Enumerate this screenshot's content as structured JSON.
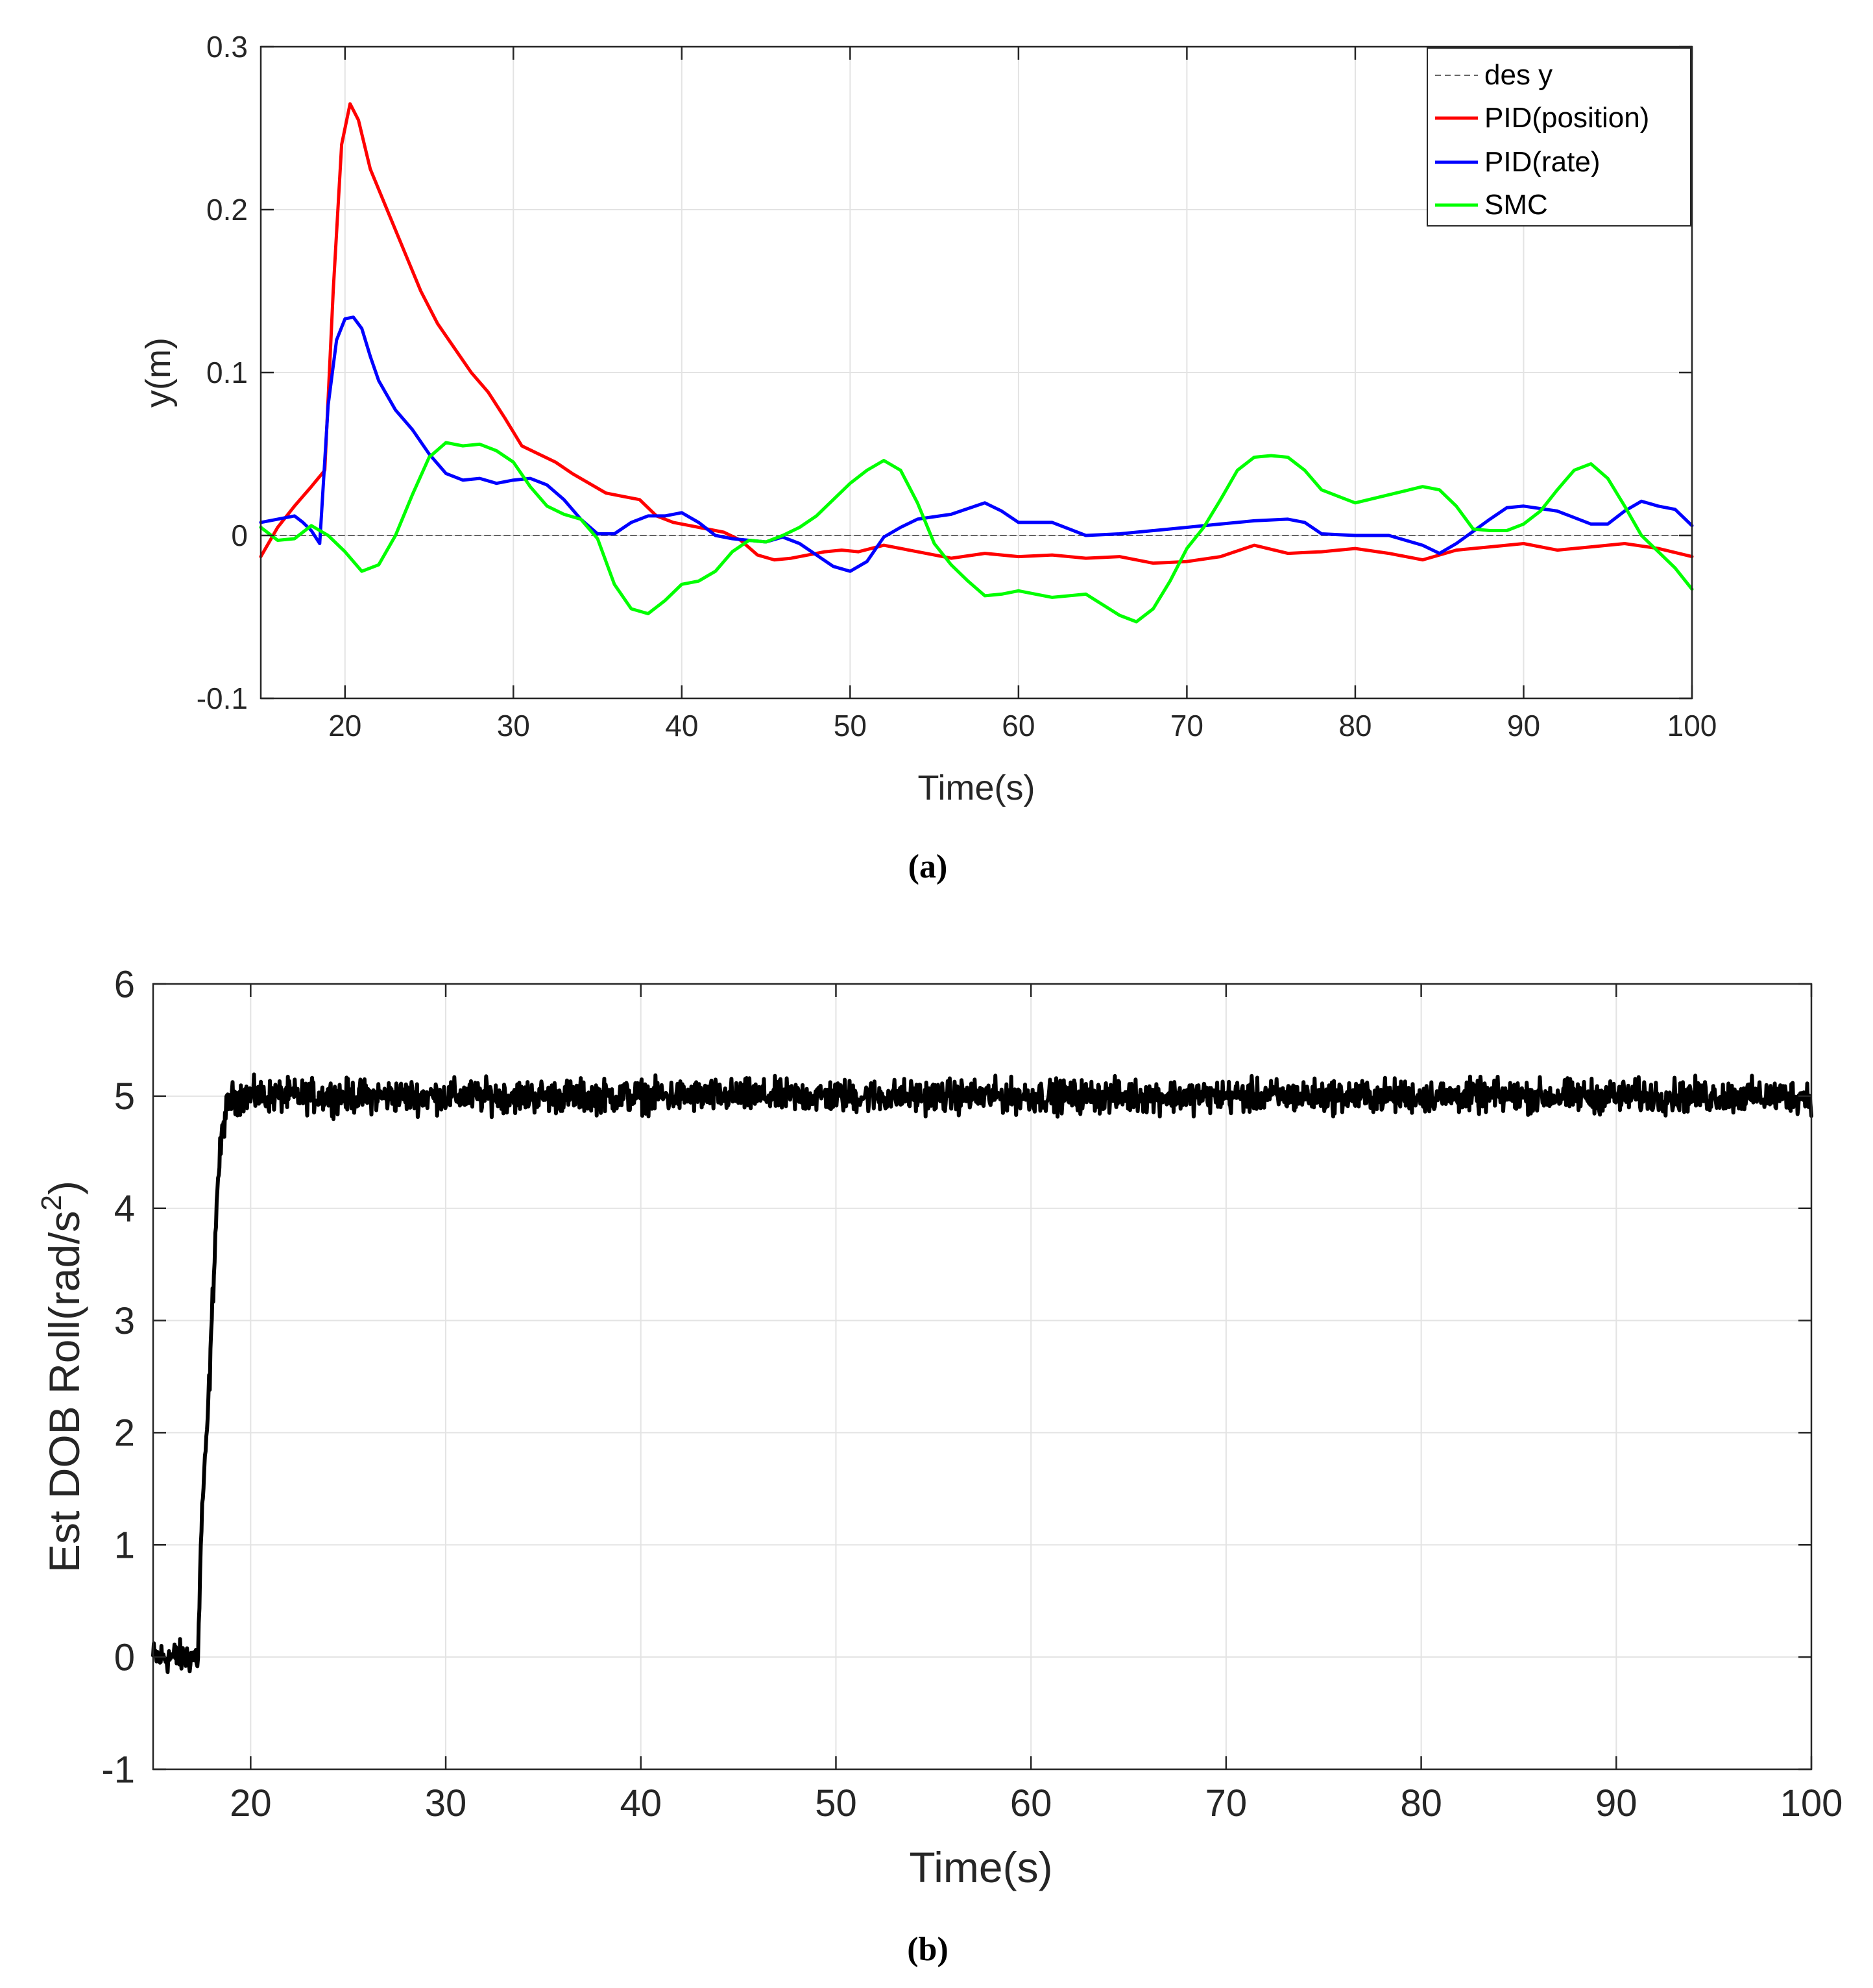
{
  "chart_data": [
    {
      "type": "line",
      "caption": "(a)",
      "xlabel": "Time(s)",
      "ylabel": "y(m)",
      "xlim": [
        15,
        100
      ],
      "ylim": [
        -0.1,
        0.3
      ],
      "xticks": [
        20,
        30,
        40,
        50,
        60,
        70,
        80,
        90,
        100
      ],
      "yticks": [
        -0.1,
        0,
        0.1,
        0.2,
        0.3
      ],
      "xtick_labels": [
        "20",
        "30",
        "40",
        "50",
        "60",
        "70",
        "80",
        "90",
        "100"
      ],
      "ytick_labels": [
        "-0.1",
        "0",
        "0.1",
        "0.2",
        "0.3"
      ],
      "grid": true,
      "legend_position": "top-right",
      "series": [
        {
          "name": "des y",
          "color": "#666666",
          "style": "dashed",
          "x": [
            15,
            100
          ],
          "y": [
            0,
            0
          ]
        },
        {
          "name": "PID(position)",
          "color": "#ff0000",
          "style": "solid",
          "x": [
            15,
            16,
            17,
            18,
            18.8,
            19.3,
            19.8,
            20.3,
            20.8,
            21.5,
            22.5,
            23.5,
            24.5,
            25.5,
            26.5,
            27.5,
            28.5,
            29.5,
            30.5,
            31.5,
            32.5,
            33.5,
            34.5,
            35.5,
            36.5,
            37.5,
            38.5,
            39.5,
            40.5,
            41.5,
            42.5,
            43.5,
            44.5,
            45.5,
            46.5,
            47.5,
            48.5,
            49.5,
            50.5,
            52,
            54,
            56,
            58,
            60,
            62,
            64,
            66,
            68,
            70,
            72,
            74,
            76,
            78,
            80,
            82,
            84,
            86,
            88,
            90,
            92,
            94,
            96,
            98,
            100
          ],
          "y": [
            -0.013,
            0.005,
            0.018,
            0.03,
            0.04,
            0.15,
            0.24,
            0.265,
            0.255,
            0.225,
            0.2,
            0.175,
            0.15,
            0.13,
            0.115,
            0.1,
            0.088,
            0.072,
            0.055,
            0.05,
            0.045,
            0.038,
            0.032,
            0.026,
            0.024,
            0.022,
            0.012,
            0.008,
            0.006,
            0.004,
            0.002,
            -0.003,
            -0.012,
            -0.015,
            -0.014,
            -0.012,
            -0.01,
            -0.009,
            -0.01,
            -0.006,
            -0.01,
            -0.014,
            -0.011,
            -0.013,
            -0.012,
            -0.014,
            -0.013,
            -0.017,
            -0.016,
            -0.013,
            -0.006,
            -0.011,
            -0.01,
            -0.008,
            -0.011,
            -0.015,
            -0.009,
            -0.007,
            -0.005,
            -0.009,
            -0.007,
            -0.005,
            -0.008,
            -0.013
          ]
        },
        {
          "name": "PID(rate)",
          "color": "#0000ff",
          "style": "solid",
          "x": [
            15,
            16,
            17,
            17.5,
            18,
            18.5,
            19,
            19.5,
            20,
            20.5,
            21,
            21.5,
            22,
            23,
            24,
            25,
            26,
            27,
            28,
            29,
            30,
            31,
            32,
            33,
            34,
            35,
            36,
            37,
            38,
            39,
            40,
            41,
            42,
            43,
            44,
            45,
            46,
            47,
            48,
            49,
            50,
            51,
            52,
            53,
            54,
            56,
            58,
            59,
            60,
            62,
            64,
            66,
            68,
            70,
            72,
            74,
            76,
            77,
            78,
            80,
            82,
            84,
            85,
            86,
            88,
            89,
            90,
            92,
            94,
            95,
            96,
            97,
            98,
            99,
            100
          ],
          "y": [
            0.008,
            0.01,
            0.012,
            0.008,
            0.003,
            -0.005,
            0.08,
            0.12,
            0.133,
            0.134,
            0.127,
            0.11,
            0.095,
            0.077,
            0.065,
            0.05,
            0.038,
            0.034,
            0.035,
            0.032,
            0.034,
            0.035,
            0.031,
            0.022,
            0.01,
            0.001,
            0.001,
            0.008,
            0.012,
            0.012,
            0.014,
            0.008,
            0.0,
            -0.002,
            -0.003,
            -0.004,
            -0.001,
            -0.005,
            -0.012,
            -0.019,
            -0.022,
            -0.016,
            -0.001,
            0.005,
            0.01,
            0.013,
            0.02,
            0.015,
            0.008,
            0.008,
            0.0,
            0.001,
            0.003,
            0.005,
            0.007,
            0.009,
            0.01,
            0.008,
            0.001,
            0.0,
            0.0,
            -0.006,
            -0.011,
            -0.005,
            0.01,
            0.017,
            0.018,
            0.015,
            0.007,
            0.007,
            0.015,
            0.021,
            0.018,
            0.016,
            0.006
          ]
        },
        {
          "name": "SMC",
          "color": "#00ff00",
          "style": "solid",
          "x": [
            15,
            16,
            17,
            18,
            19,
            20,
            21,
            22,
            23,
            24,
            25,
            26,
            27,
            28,
            29,
            30,
            31,
            32,
            33,
            34,
            35,
            36,
            37,
            38,
            39,
            40,
            41,
            42,
            43,
            44,
            45,
            46,
            47,
            48,
            49,
            50,
            51,
            52,
            53,
            54,
            55,
            56,
            57,
            58,
            59,
            60,
            62,
            64,
            66,
            67,
            68,
            69,
            70,
            71,
            72,
            73,
            74,
            75,
            76,
            77,
            78,
            79,
            80,
            82,
            84,
            85,
            86,
            87,
            88,
            89,
            90,
            91,
            92,
            93,
            94,
            95,
            96,
            97,
            98,
            99,
            100
          ],
          "y": [
            0.005,
            -0.003,
            -0.002,
            0.006,
            0.0,
            -0.01,
            -0.022,
            -0.018,
            0.0,
            0.025,
            0.048,
            0.057,
            0.055,
            0.056,
            0.052,
            0.045,
            0.03,
            0.018,
            0.013,
            0.01,
            -0.002,
            -0.03,
            -0.045,
            -0.048,
            -0.04,
            -0.03,
            -0.028,
            -0.022,
            -0.01,
            -0.003,
            -0.004,
            0.0,
            0.005,
            0.012,
            0.022,
            0.032,
            0.04,
            0.046,
            0.04,
            0.02,
            -0.005,
            -0.018,
            -0.028,
            -0.037,
            -0.036,
            -0.034,
            -0.038,
            -0.036,
            -0.049,
            -0.053,
            -0.045,
            -0.028,
            -0.008,
            0.005,
            0.022,
            0.04,
            0.048,
            0.049,
            0.048,
            0.04,
            0.028,
            0.024,
            0.02,
            0.025,
            0.03,
            0.028,
            0.018,
            0.004,
            0.003,
            0.003,
            0.007,
            0.015,
            0.028,
            0.04,
            0.044,
            0.035,
            0.018,
            0.0,
            -0.01,
            -0.02,
            -0.033
          ]
        }
      ]
    },
    {
      "type": "line",
      "caption": "(b)",
      "xlabel": "Time(s)",
      "ylabel": "Est DOB Roll(rad/s",
      "ylabel_superscript": "2",
      "ylabel_suffix": ")",
      "xlim": [
        15,
        100
      ],
      "ylim": [
        -1,
        6
      ],
      "xticks": [
        20,
        30,
        40,
        50,
        60,
        70,
        80,
        90,
        100
      ],
      "yticks": [
        -1,
        0,
        1,
        2,
        3,
        4,
        5,
        6
      ],
      "xtick_labels": [
        "20",
        "30",
        "40",
        "50",
        "60",
        "70",
        "80",
        "90",
        "100"
      ],
      "ytick_labels": [
        "-1",
        "0",
        "1",
        "2",
        "3",
        "4",
        "5",
        "6"
      ],
      "grid": true,
      "series": [
        {
          "name": "Est DOB Roll",
          "color": "#000000",
          "style": "solid",
          "noise_amplitude": 0.09,
          "x": [
            15,
            17.3,
            17.5,
            17.7,
            17.9,
            18.1,
            18.3,
            18.5,
            18.7,
            19.0,
            19.5,
            100
          ],
          "y": [
            0,
            0,
            1.3,
            1.8,
            2.5,
            3.4,
            4.2,
            4.6,
            4.85,
            4.97,
            5.0,
            5.0
          ]
        }
      ]
    }
  ]
}
